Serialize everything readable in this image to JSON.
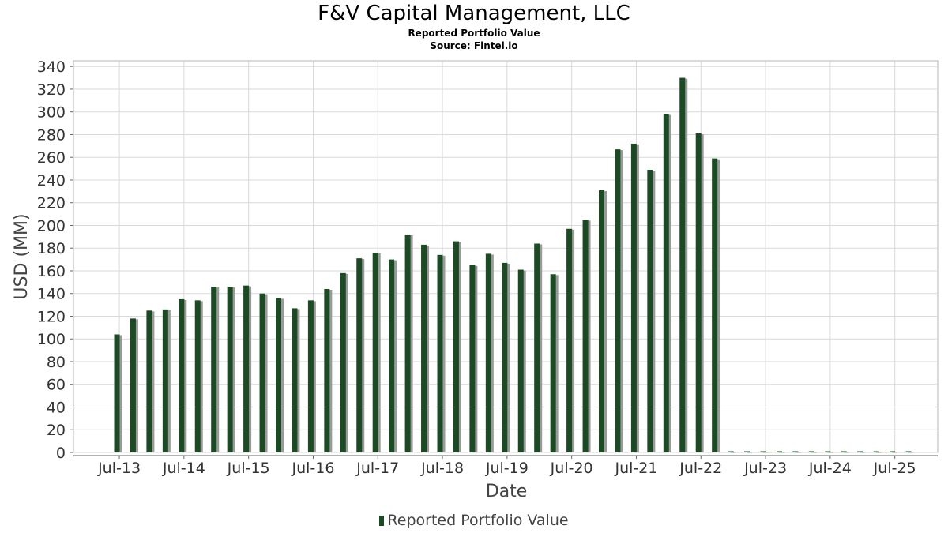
{
  "header": {
    "title": "F&V Capital Management, LLC",
    "subtitle": "Reported Portfolio Value",
    "source": "Source: Fintel.io"
  },
  "legend": {
    "label": "Reported Portfolio Value"
  },
  "colors": {
    "bar": "#1c4a24",
    "bar_shadow": "#9a9a9a",
    "grid": "#d9d9d9",
    "axis": "#666666"
  },
  "chart_data": {
    "type": "bar",
    "xlabel": "Date",
    "ylabel": "USD (MM)",
    "ylim": [
      0,
      345
    ],
    "yticks": [
      0,
      20,
      40,
      60,
      80,
      100,
      120,
      140,
      160,
      180,
      200,
      220,
      240,
      260,
      280,
      300,
      320,
      340
    ],
    "xticks": [
      "Jul-13",
      "Jul-14",
      "Jul-15",
      "Jul-16",
      "Jul-17",
      "Jul-18",
      "Jul-19",
      "Jul-20",
      "Jul-21",
      "Jul-22",
      "Jul-23",
      "Jul-24",
      "Jul-25"
    ],
    "grid": true,
    "legend_position": "bottom",
    "series": [
      {
        "name": "Reported Portfolio Value",
        "values": [
          104,
          118,
          125,
          126,
          135,
          134,
          146,
          146,
          147,
          140,
          136,
          127,
          134,
          144,
          158,
          171,
          176,
          170,
          192,
          183,
          174,
          186,
          165,
          175,
          167,
          161,
          184,
          157,
          197,
          205,
          231,
          267,
          272,
          249,
          298,
          330,
          281,
          259,
          0,
          0,
          0,
          0,
          0,
          0,
          0,
          0,
          0,
          0,
          0,
          0
        ]
      }
    ]
  }
}
